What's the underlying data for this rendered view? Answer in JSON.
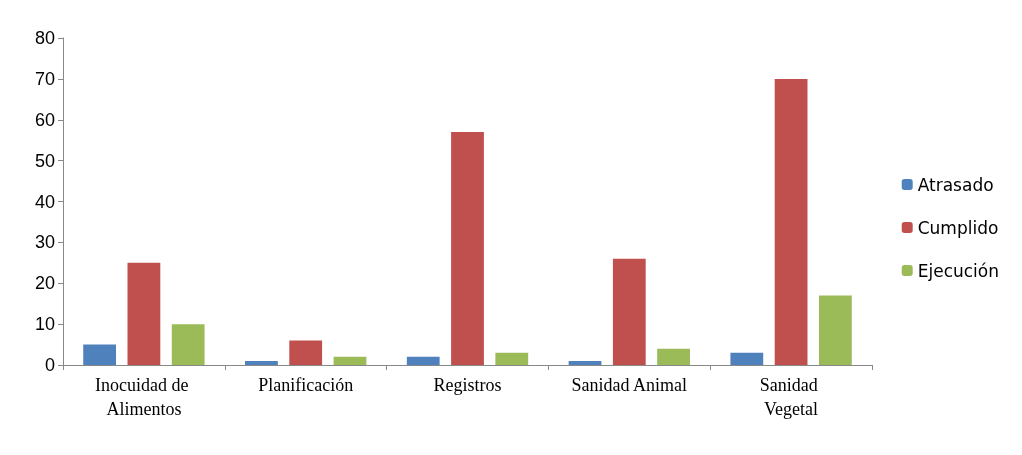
{
  "chart_data": {
    "type": "bar",
    "categories": [
      "Inocuidad de Alimentos",
      "Planificación",
      "Registros",
      "Sanidad Animal",
      "Sanidad Vegetal"
    ],
    "series": [
      {
        "name": "Atrasado",
        "color": "#4f81bd",
        "values": [
          5,
          1,
          2,
          1,
          3
        ]
      },
      {
        "name": "Cumplido",
        "color": "#c0504d",
        "values": [
          25,
          6,
          57,
          26,
          70
        ]
      },
      {
        "name": "Ejecución",
        "color": "#9bbb59",
        "values": [
          10,
          2,
          3,
          4,
          17
        ]
      }
    ],
    "ylim": [
      0,
      80
    ],
    "yticks": [
      0,
      10,
      20,
      30,
      40,
      50,
      60,
      70,
      80
    ],
    "grid": false,
    "legend": "right"
  }
}
